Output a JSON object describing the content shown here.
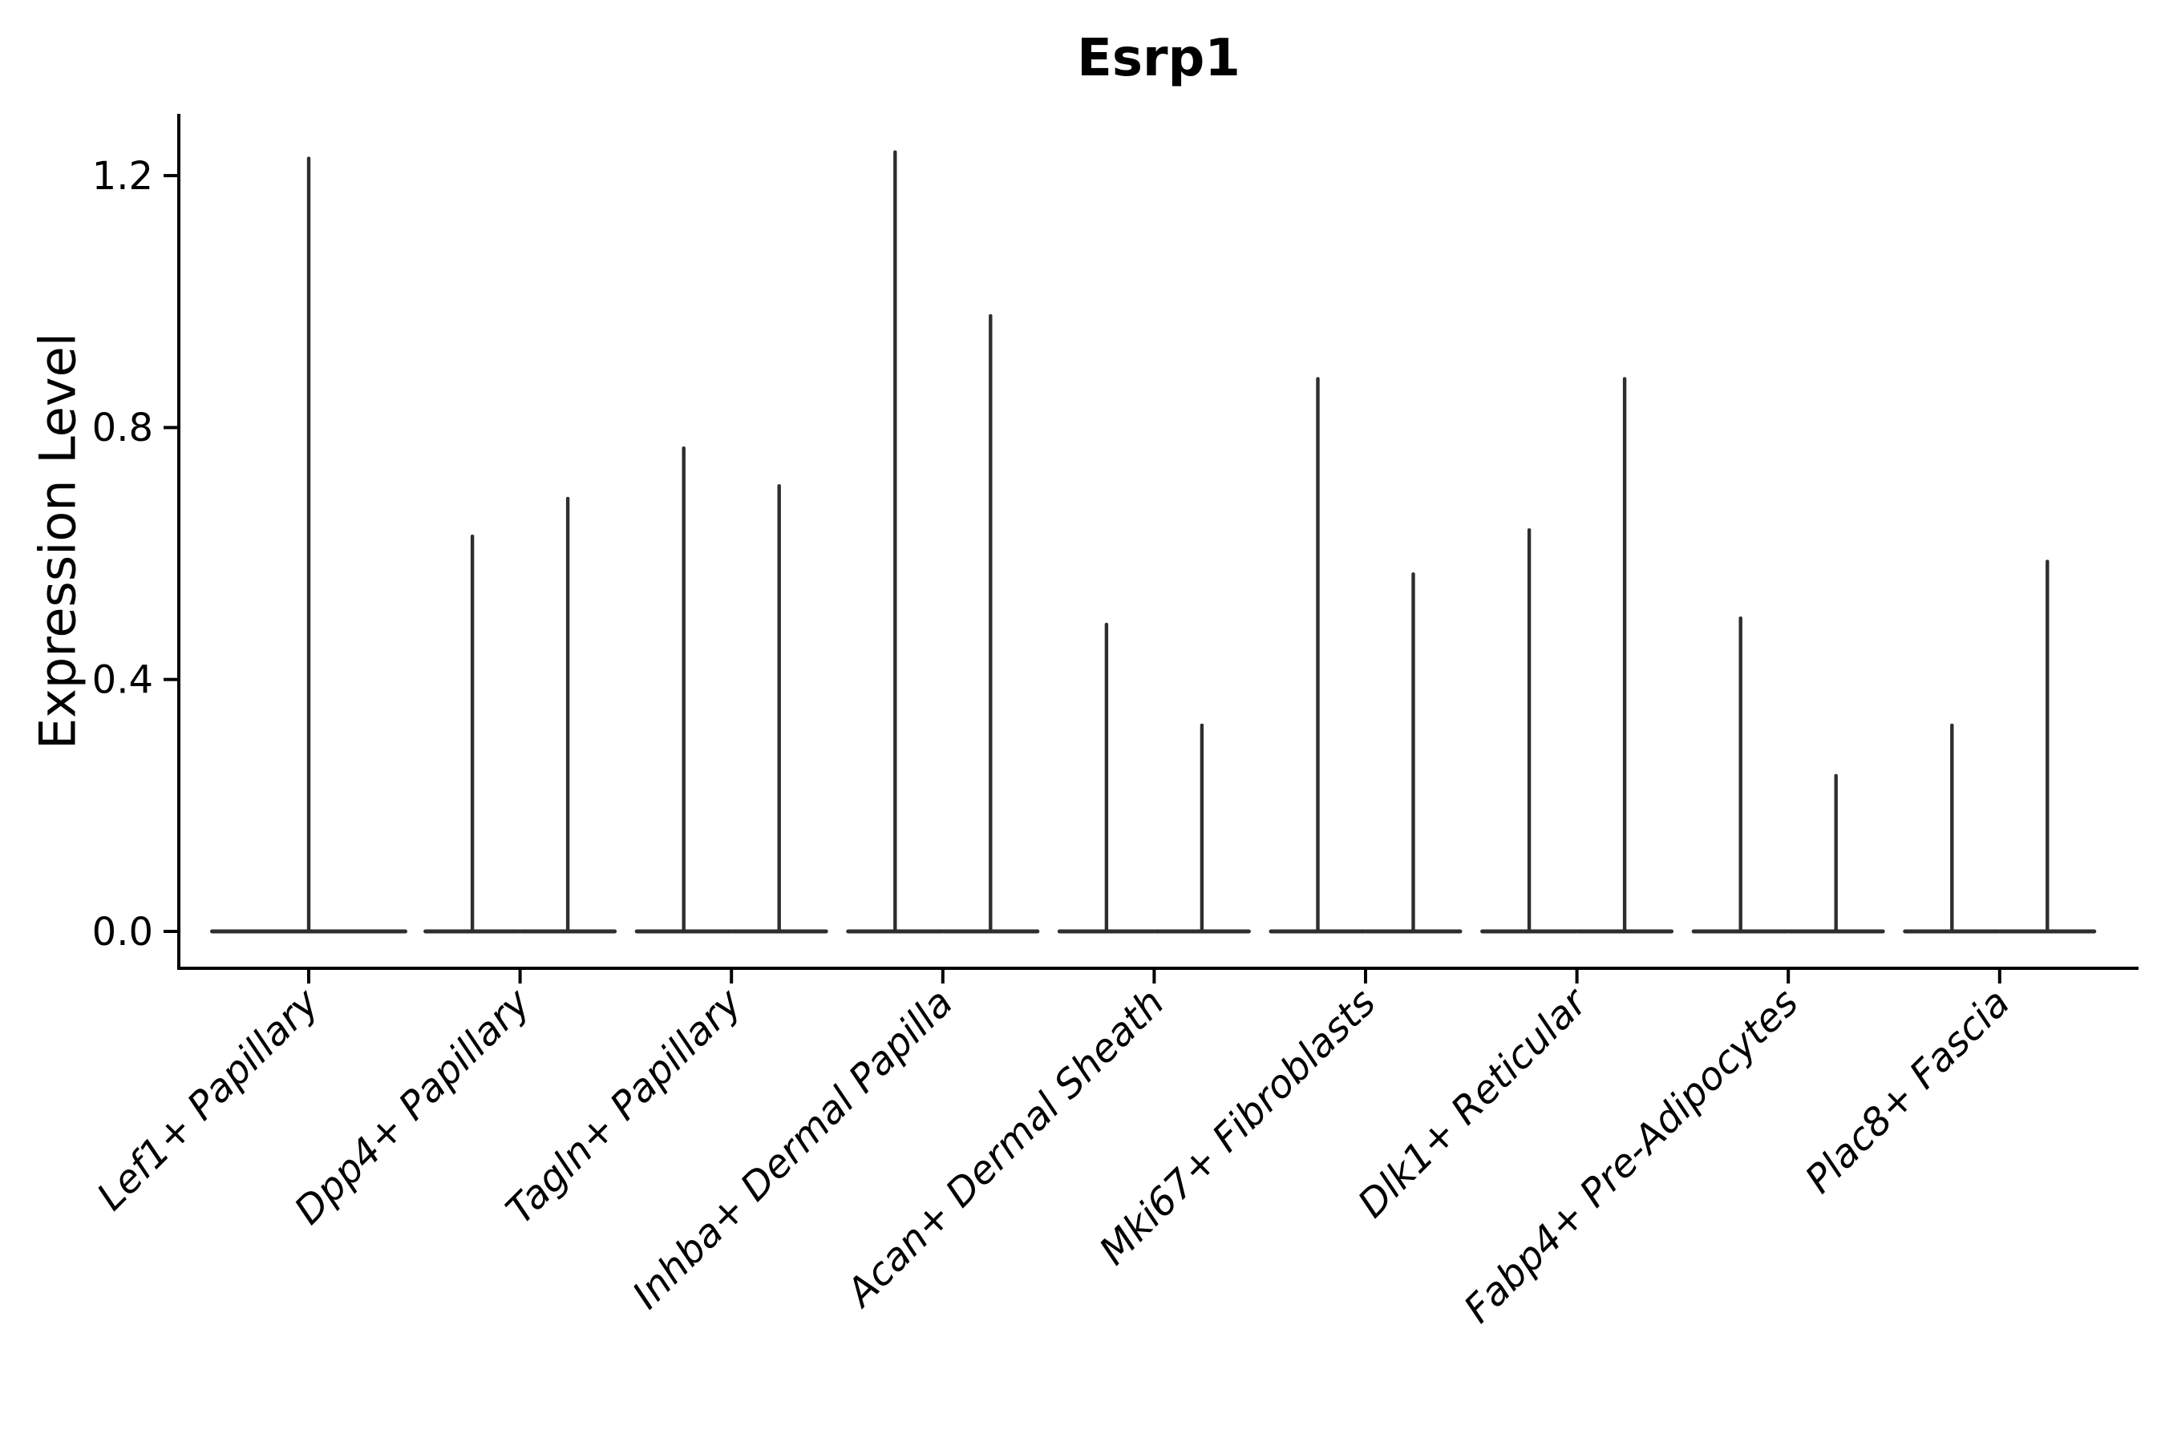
{
  "chart_data": {
    "type": "violin",
    "title": "Esrp1",
    "xlabel": "",
    "ylabel": "Expression Level",
    "ylim": [
      -0.06,
      1.3
    ],
    "yticks": [
      0.0,
      0.4,
      0.8,
      1.2
    ],
    "ytick_labels": [
      "0.0",
      "0.4",
      "0.8",
      "1.2"
    ],
    "grid": false,
    "legend": false,
    "x_tick_label_rotation_deg": 45,
    "x_tick_label_italic": true,
    "categories": [
      "Lef1+ Papillary",
      "Dpp4+ Papillary",
      "Tagln+ Papillary",
      "Inhba+ Dermal Papilla",
      "Acan+ Dermal Sheath",
      "Mki67+ Fibroblasts",
      "Dlk1+ Reticular",
      "Fabp4+ Pre-Adipocytes",
      "Plac8+ Fascia"
    ],
    "violins": [
      {
        "category": "Lef1+ Papillary",
        "n_violins": 1,
        "spike_maxima": [
          1.23
        ]
      },
      {
        "category": "Dpp4+ Papillary",
        "n_violins": 2,
        "spike_maxima": [
          0.63,
          0.69
        ]
      },
      {
        "category": "Tagln+ Papillary",
        "n_violins": 2,
        "spike_maxima": [
          0.77,
          0.71
        ]
      },
      {
        "category": "Inhba+ Dermal Papilla",
        "n_violins": 2,
        "spike_maxima": [
          1.24,
          0.98
        ]
      },
      {
        "category": "Acan+ Dermal Sheath",
        "n_violins": 2,
        "spike_maxima": [
          0.49,
          0.33
        ]
      },
      {
        "category": "Mki67+ Fibroblasts",
        "n_violins": 2,
        "spike_maxima": [
          0.88,
          0.57
        ]
      },
      {
        "category": "Dlk1+ Reticular",
        "n_violins": 2,
        "spike_maxima": [
          0.64,
          0.88
        ]
      },
      {
        "category": "Fabp4+ Pre-Adipocytes",
        "n_violins": 2,
        "spike_maxima": [
          0.5,
          0.25
        ]
      },
      {
        "category": "Plac8+ Fascia",
        "n_violins": 2,
        "spike_maxima": [
          0.33,
          0.59
        ]
      }
    ],
    "colors": {
      "violin_line": "#2e2e2e",
      "axis": "#000000",
      "text": "#000000",
      "background": "#ffffff"
    }
  }
}
